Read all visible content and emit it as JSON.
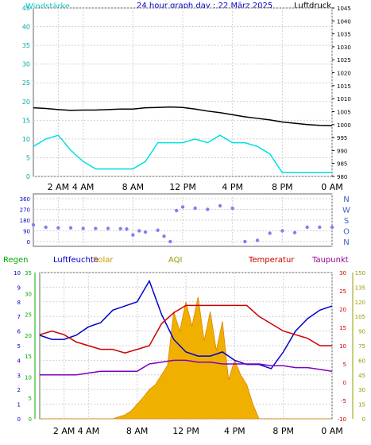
{
  "top": {
    "title": "24 hour graph day : 22 März 2025",
    "left_label": "Windstärke",
    "right_label": "Luftdruck",
    "colors": {
      "title": "#0000cc",
      "left": "#00c8c8",
      "right": "#000000"
    }
  },
  "time_labels": [
    "2 AM",
    "4 AM",
    "8 AM",
    "12 PM",
    "4 PM",
    "8 PM",
    "0 AM"
  ],
  "time_hours": [
    2,
    4,
    8,
    12,
    16,
    20,
    24
  ],
  "panel1": {
    "left_ticks": [
      "0",
      "5",
      "10",
      "15",
      "20",
      "25",
      "30",
      "35",
      "40",
      "45"
    ],
    "right_ticks": [
      "980",
      "985",
      "990",
      "995",
      "1000",
      "1005",
      "1010",
      "1015",
      "1020",
      "1025",
      "1030",
      "1035",
      "1040",
      "1045"
    ]
  },
  "panel2": {
    "left_ticks": [
      "0",
      "90",
      "180",
      "270",
      "360"
    ],
    "right_letters": [
      "N",
      "W",
      "S",
      "O",
      "N"
    ]
  },
  "panel3": {
    "header": [
      {
        "text": "Regen",
        "color": "#00aa00"
      },
      {
        "text": "Luftfeuchte",
        "color": "#0000cc"
      },
      {
        "text": "Solar",
        "color": "#cc9900"
      },
      {
        "text": "AQI",
        "color": "#999900"
      },
      {
        "text": "Temperatur",
        "color": "#cc0000"
      },
      {
        "text": "Taupunkt",
        "color": "#990099"
      }
    ],
    "rain_ticks": [
      "0",
      "1",
      "2",
      "3",
      "4",
      "5",
      "6",
      "7",
      "8",
      "9",
      "10"
    ],
    "hum_ticks": [
      "0",
      "5",
      "10",
      "15",
      "20",
      "25",
      "30",
      "35"
    ],
    "temp_ticks": [
      "-10",
      "-5",
      "0",
      "5",
      "10",
      "15",
      "20",
      "25",
      "30"
    ],
    "aqi_ticks": [
      "0",
      "15",
      "30",
      "45",
      "60",
      "75",
      "90",
      "105",
      "120",
      "135",
      "150"
    ]
  },
  "chart_data": [
    {
      "type": "line",
      "title": "24 hour graph day : 22 März 2025",
      "xlabel": "",
      "x_ticks": [
        "2 AM",
        "4 AM",
        "8 AM",
        "12 PM",
        "4 PM",
        "8 PM",
        "0 AM"
      ],
      "series": [
        {
          "name": "Windstärke",
          "axis": "left",
          "ylim": [
            0,
            45
          ],
          "color": "#00e0e0",
          "x_hours": [
            0,
            1,
            2,
            3,
            4,
            5,
            6,
            7,
            8,
            9,
            10,
            11,
            12,
            13,
            14,
            15,
            16,
            17,
            18,
            19,
            20,
            21,
            22,
            23,
            24
          ],
          "values": [
            8,
            10,
            11,
            7,
            4,
            2,
            2,
            2,
            2,
            4,
            9,
            9,
            9,
            10,
            9,
            11,
            9,
            9,
            8,
            6,
            1,
            1,
            1,
            1,
            1
          ]
        },
        {
          "name": "Luftdruck",
          "axis": "right",
          "ylim": [
            980,
            1045
          ],
          "color": "#000000",
          "x_hours": [
            0,
            1,
            2,
            3,
            4,
            5,
            6,
            7,
            8,
            9,
            10,
            11,
            12,
            13,
            14,
            15,
            16,
            17,
            18,
            19,
            20,
            21,
            22,
            23,
            24
          ],
          "values": [
            1006.5,
            1006.2,
            1005.8,
            1005.5,
            1005.6,
            1005.6,
            1005.8,
            1006.0,
            1006.0,
            1006.5,
            1006.6,
            1006.8,
            1006.6,
            1006.0,
            1005.2,
            1004.6,
            1003.8,
            1003.0,
            1002.4,
            1001.8,
            1001.0,
            1000.5,
            1000.0,
            999.7,
            999.6
          ]
        }
      ]
    },
    {
      "type": "scatter",
      "title": "",
      "ylabel": "",
      "ylim": [
        0,
        360
      ],
      "series": [
        {
          "name": "",
          "color": "#8080f0",
          "x_hours": [
            0,
            1,
            2,
            3,
            4,
            5,
            6,
            7,
            7.5,
            8,
            8.5,
            9,
            10,
            10.5,
            11,
            11.5,
            12,
            13,
            14,
            15,
            16,
            17,
            18,
            19,
            20,
            21,
            22,
            23,
            24
          ],
          "values": [
            140,
            120,
            115,
            115,
            110,
            110,
            110,
            108,
            105,
            55,
            90,
            80,
            95,
            45,
            0,
            260,
            290,
            280,
            270,
            300,
            280,
            0,
            10,
            70,
            90,
            75,
            120,
            120,
            120
          ]
        }
      ]
    },
    {
      "type": "line",
      "title": "",
      "series": [
        {
          "name": "Luftfeuchte",
          "axis": "humidity",
          "ylim": [
            0,
            35
          ],
          "color": "#0000cc",
          "x_hours": [
            0,
            1,
            2,
            3,
            4,
            5,
            6,
            7,
            8,
            9,
            10,
            11,
            12,
            13,
            14,
            15,
            16,
            17,
            18,
            19,
            20,
            21,
            22,
            23,
            24
          ],
          "values": [
            20,
            19,
            19,
            20,
            22,
            23,
            26,
            27,
            28,
            33,
            25,
            19,
            16,
            15,
            15,
            16,
            14,
            13,
            13,
            12,
            16,
            21,
            24,
            26,
            27
          ]
        },
        {
          "name": "Temperatur",
          "axis": "temp",
          "ylim": [
            -10,
            30
          ],
          "color": "#cc0000",
          "x_hours": [
            0,
            1,
            2,
            3,
            4,
            5,
            6,
            7,
            8,
            9,
            10,
            11,
            12,
            13,
            14,
            15,
            16,
            17,
            18,
            19,
            20,
            21,
            22,
            23,
            24
          ],
          "values": [
            13,
            14,
            13,
            11,
            10,
            9,
            9,
            8,
            9,
            10,
            16,
            19,
            21,
            21,
            21,
            21,
            21,
            21,
            18,
            16,
            14,
            13,
            12,
            10,
            10
          ]
        },
        {
          "name": "Taupunkt",
          "axis": "temp",
          "ylim": [
            -10,
            30
          ],
          "color": "#8000c0",
          "x_hours": [
            0,
            1,
            2,
            3,
            4,
            5,
            6,
            7,
            8,
            9,
            10,
            11,
            12,
            13,
            14,
            15,
            16,
            17,
            18,
            19,
            20,
            21,
            22,
            23,
            24
          ],
          "values": [
            2,
            2,
            2,
            2,
            2.5,
            3,
            3,
            3,
            3,
            5,
            5.5,
            6,
            6,
            5.5,
            5.5,
            5,
            5,
            5,
            5,
            4.5,
            4.5,
            4,
            4,
            3.5,
            3
          ]
        },
        {
          "name": "Solar",
          "axis": "aqi",
          "ylim": [
            0,
            150
          ],
          "color": "#f0a000",
          "x_hours": [
            0,
            6,
            6.5,
            7,
            7.5,
            8,
            8.5,
            9,
            9.5,
            10,
            10.5,
            11,
            11.5,
            12,
            12.5,
            13,
            13.5,
            14,
            14.5,
            15,
            15.5,
            16,
            16.5,
            17,
            17.5,
            18,
            24
          ],
          "values": [
            0,
            0,
            2,
            4,
            8,
            15,
            22,
            30,
            35,
            45,
            55,
            110,
            90,
            120,
            95,
            125,
            80,
            110,
            70,
            100,
            40,
            60,
            45,
            35,
            15,
            0,
            0
          ]
        }
      ]
    }
  ]
}
